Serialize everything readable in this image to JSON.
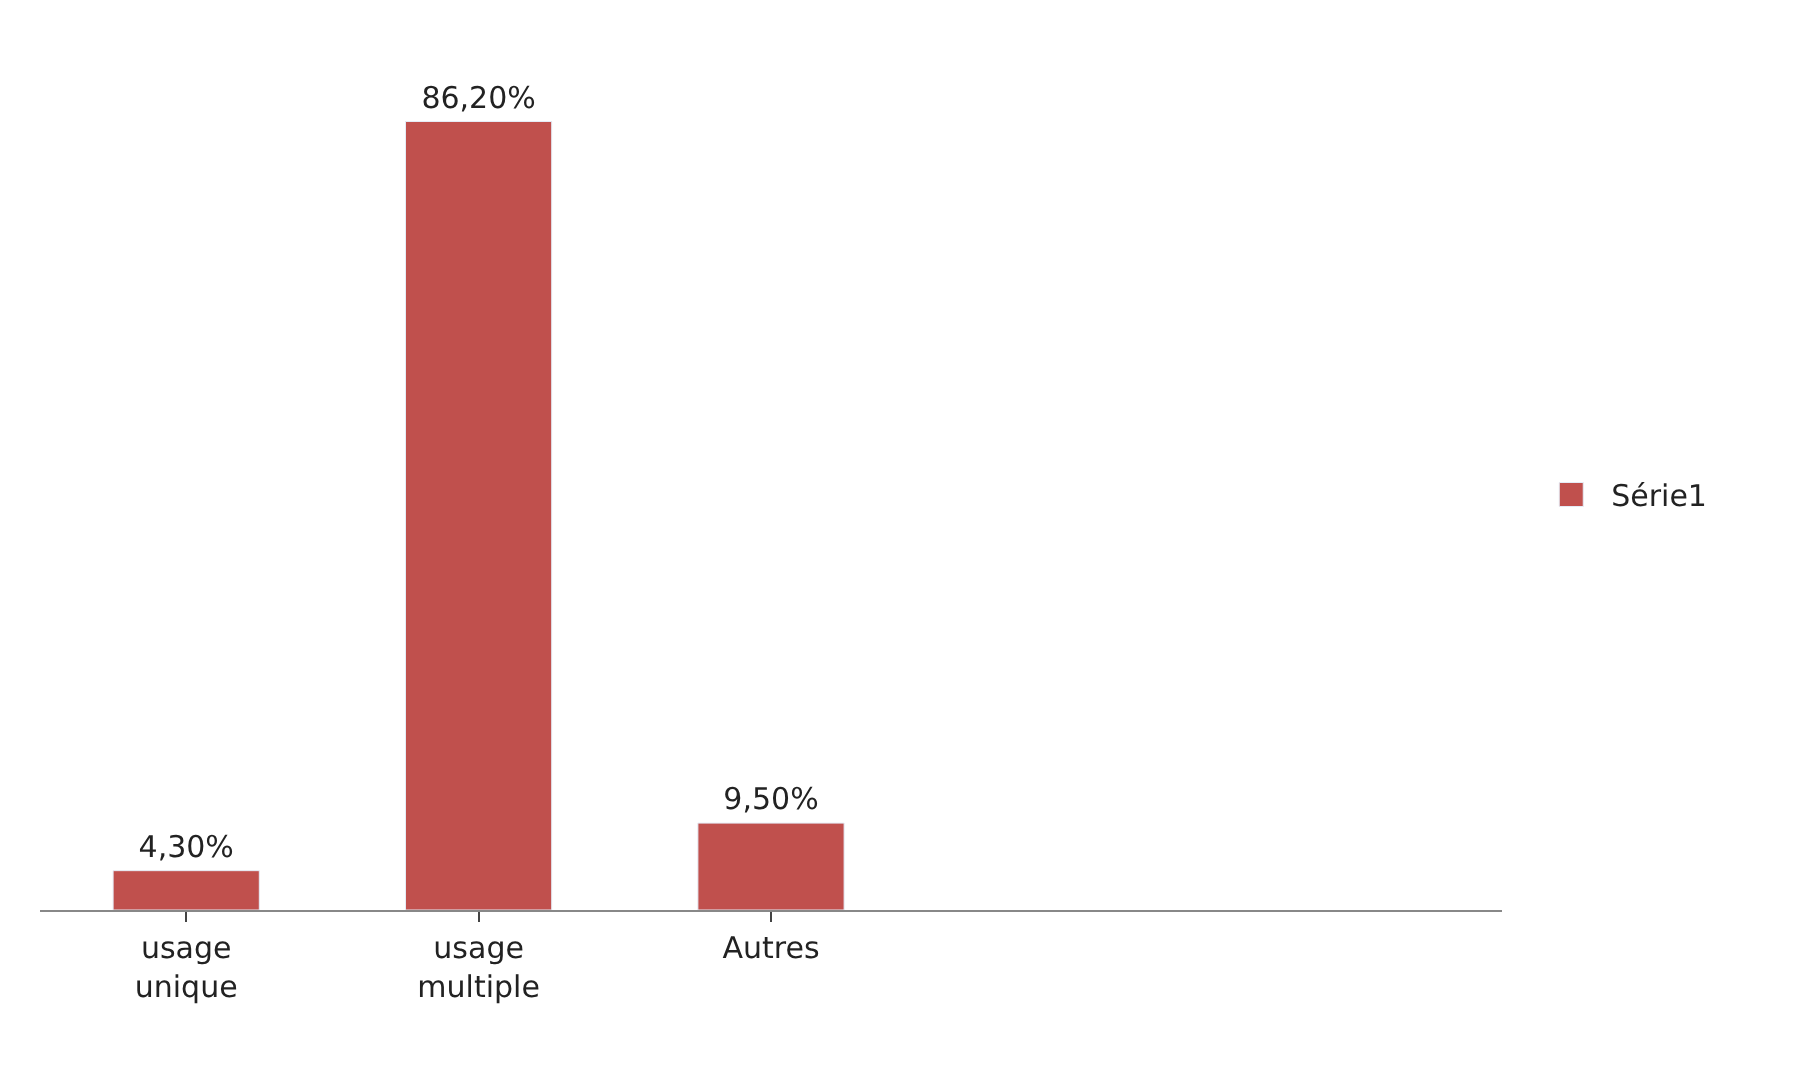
{
  "chart_data": {
    "type": "bar",
    "categories": [
      "usage unique",
      "usage multiple",
      "Autres",
      null,
      null
    ],
    "series": [
      {
        "name": "Série1",
        "color": "#c0504d",
        "values": [
          4.3,
          86.2,
          9.5,
          null,
          null
        ],
        "value_labels": [
          "4,30%",
          "86,20%",
          "9,50%",
          null,
          null
        ]
      }
    ],
    "legend": "right",
    "tick_labels": "x"
  }
}
